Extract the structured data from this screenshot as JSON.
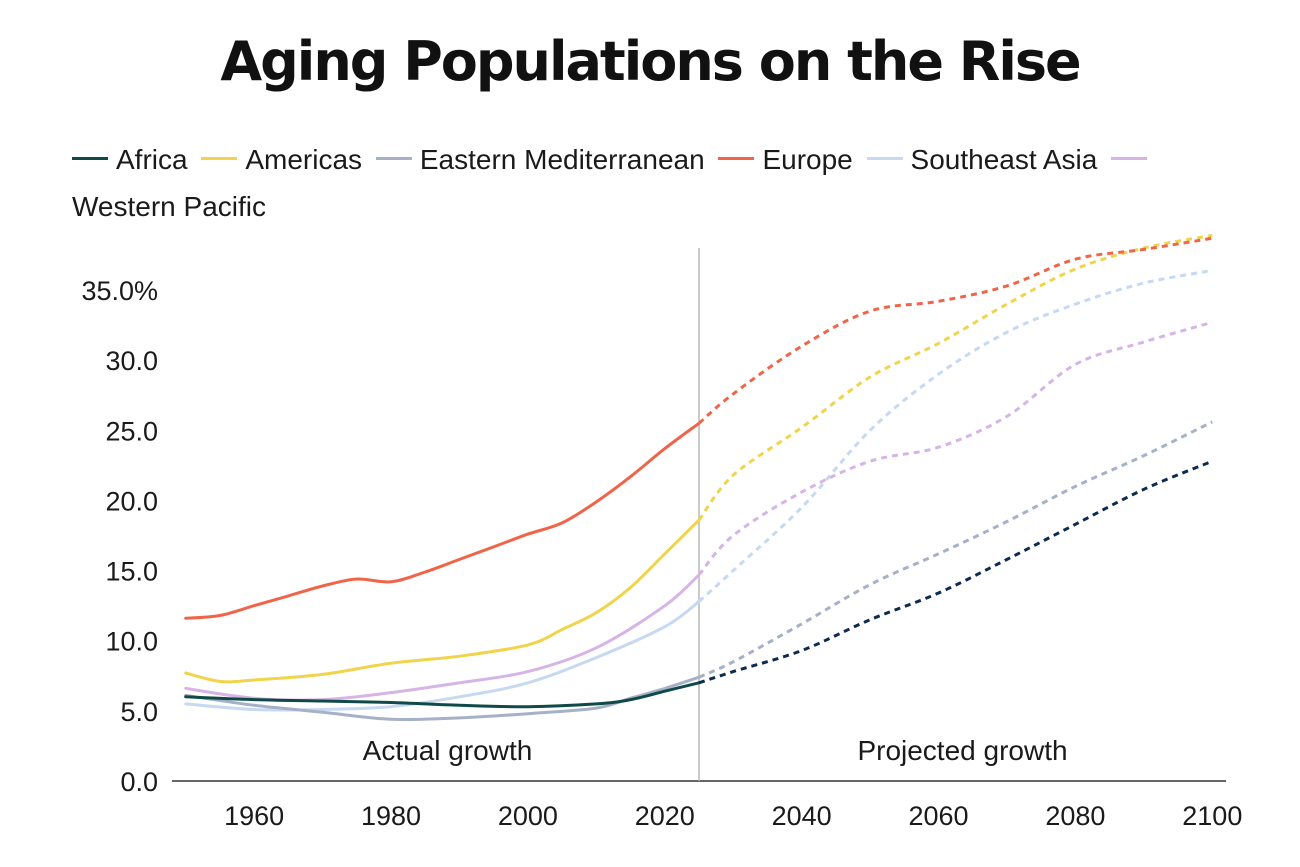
{
  "title": "Aging Populations on the Rise",
  "chart_data": {
    "type": "line",
    "title": "Aging Populations on the Rise",
    "xlabel": "",
    "ylabel": "",
    "xlim": [
      1948,
      2102
    ],
    "ylim": [
      0,
      38
    ],
    "x_ticks": [
      "1960",
      "1980",
      "2000",
      "2020",
      "2040",
      "2060",
      "2080",
      "2100"
    ],
    "x_tick_values": [
      1960,
      1980,
      2000,
      2020,
      2040,
      2060,
      2080,
      2100
    ],
    "y_ticks": [
      "0.0",
      "5.0",
      "10.0",
      "15.0",
      "20.0",
      "25.0",
      "30.0",
      "35.0%"
    ],
    "y_tick_values": [
      0,
      5,
      10,
      15,
      20,
      25,
      30,
      35
    ],
    "divider_year": 2025,
    "annotations": [
      "Actual growth",
      "Projected growth"
    ],
    "series": [
      {
        "name": "Africa",
        "color": "#0f4a48",
        "projected_color": "#0d2a4f",
        "actual": [
          [
            1950,
            6.0
          ],
          [
            1960,
            5.8
          ],
          [
            1970,
            5.7
          ],
          [
            1980,
            5.6
          ],
          [
            1990,
            5.4
          ],
          [
            2000,
            5.3
          ],
          [
            2010,
            5.5
          ],
          [
            2015,
            5.8
          ],
          [
            2020,
            6.4
          ],
          [
            2025,
            7.0
          ]
        ],
        "projected": [
          [
            2025,
            7.0
          ],
          [
            2030,
            7.8
          ],
          [
            2040,
            9.3
          ],
          [
            2050,
            11.5
          ],
          [
            2060,
            13.4
          ],
          [
            2070,
            15.8
          ],
          [
            2080,
            18.3
          ],
          [
            2090,
            20.8
          ],
          [
            2100,
            22.8
          ]
        ]
      },
      {
        "name": "Americas",
        "color": "#f0d44b",
        "projected_color": "#f0d44b",
        "actual": [
          [
            1950,
            7.7
          ],
          [
            1955,
            7.1
          ],
          [
            1960,
            7.2
          ],
          [
            1970,
            7.6
          ],
          [
            1980,
            8.4
          ],
          [
            1990,
            8.9
          ],
          [
            2000,
            9.7
          ],
          [
            2005,
            10.8
          ],
          [
            2010,
            12.0
          ],
          [
            2015,
            13.8
          ],
          [
            2020,
            16.2
          ],
          [
            2025,
            18.6
          ]
        ],
        "projected": [
          [
            2025,
            18.6
          ],
          [
            2030,
            21.8
          ],
          [
            2040,
            25.2
          ],
          [
            2050,
            28.8
          ],
          [
            2060,
            31.2
          ],
          [
            2070,
            34.0
          ],
          [
            2080,
            36.5
          ],
          [
            2090,
            38.0
          ],
          [
            2100,
            38.9
          ]
        ]
      },
      {
        "name": "Eastern Mediterranean",
        "color": "#a6b1c7",
        "projected_color": "#a6b1c7",
        "actual": [
          [
            1950,
            6.1
          ],
          [
            1960,
            5.4
          ],
          [
            1970,
            4.9
          ],
          [
            1980,
            4.4
          ],
          [
            1990,
            4.5
          ],
          [
            2000,
            4.8
          ],
          [
            2010,
            5.2
          ],
          [
            2015,
            5.9
          ],
          [
            2020,
            6.6
          ],
          [
            2025,
            7.4
          ]
        ],
        "projected": [
          [
            2025,
            7.4
          ],
          [
            2030,
            8.5
          ],
          [
            2040,
            11.2
          ],
          [
            2050,
            14.0
          ],
          [
            2060,
            16.2
          ],
          [
            2070,
            18.5
          ],
          [
            2080,
            21.0
          ],
          [
            2090,
            23.2
          ],
          [
            2100,
            25.6
          ]
        ]
      },
      {
        "name": "Europe",
        "color": "#f0654a",
        "projected_color": "#f0654a",
        "actual": [
          [
            1950,
            11.6
          ],
          [
            1955,
            11.8
          ],
          [
            1960,
            12.5
          ],
          [
            1965,
            13.2
          ],
          [
            1970,
            13.9
          ],
          [
            1975,
            14.4
          ],
          [
            1980,
            14.2
          ],
          [
            1985,
            14.9
          ],
          [
            1990,
            15.8
          ],
          [
            1995,
            16.7
          ],
          [
            2000,
            17.6
          ],
          [
            2005,
            18.4
          ],
          [
            2010,
            19.9
          ],
          [
            2015,
            21.7
          ],
          [
            2020,
            23.7
          ],
          [
            2025,
            25.5
          ]
        ],
        "projected": [
          [
            2025,
            25.5
          ],
          [
            2030,
            27.6
          ],
          [
            2040,
            31.0
          ],
          [
            2050,
            33.5
          ],
          [
            2060,
            34.2
          ],
          [
            2070,
            35.3
          ],
          [
            2080,
            37.2
          ],
          [
            2090,
            37.9
          ],
          [
            2100,
            38.7
          ]
        ]
      },
      {
        "name": "Southeast Asia",
        "color": "#c6d9f1",
        "projected_color": "#c6d9f1",
        "actual": [
          [
            1950,
            5.5
          ],
          [
            1960,
            5.1
          ],
          [
            1970,
            5.1
          ],
          [
            1980,
            5.3
          ],
          [
            1990,
            6.0
          ],
          [
            2000,
            7.0
          ],
          [
            2010,
            8.8
          ],
          [
            2020,
            11.0
          ],
          [
            2025,
            12.8
          ]
        ],
        "projected": [
          [
            2025,
            12.8
          ],
          [
            2030,
            15.0
          ],
          [
            2040,
            19.5
          ],
          [
            2050,
            25.0
          ],
          [
            2060,
            29.0
          ],
          [
            2070,
            32.0
          ],
          [
            2080,
            34.0
          ],
          [
            2090,
            35.5
          ],
          [
            2100,
            36.4
          ]
        ]
      },
      {
        "name": "Western Pacific",
        "color": "#d6b5e6",
        "projected_color": "#d6b5e6",
        "actual": [
          [
            1950,
            6.6
          ],
          [
            1960,
            5.9
          ],
          [
            1970,
            5.8
          ],
          [
            1980,
            6.3
          ],
          [
            1990,
            7.0
          ],
          [
            2000,
            7.8
          ],
          [
            2010,
            9.5
          ],
          [
            2020,
            12.5
          ],
          [
            2025,
            14.7
          ]
        ],
        "projected": [
          [
            2025,
            14.7
          ],
          [
            2030,
            17.5
          ],
          [
            2040,
            20.6
          ],
          [
            2050,
            22.8
          ],
          [
            2060,
            23.8
          ],
          [
            2070,
            26.0
          ],
          [
            2080,
            29.7
          ],
          [
            2090,
            31.3
          ],
          [
            2100,
            32.7
          ]
        ]
      }
    ]
  }
}
